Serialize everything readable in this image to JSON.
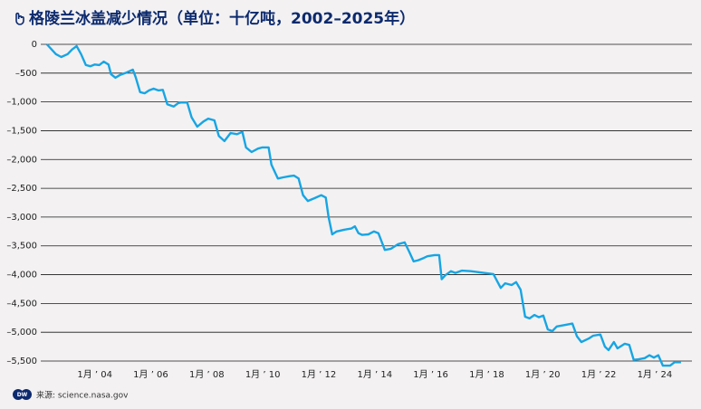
{
  "chart_data": {
    "type": "line",
    "title": "格陵兰冰盖减少情况（单位：十亿吨，2002–2025年）",
    "source": "来源: science.nasa.gov",
    "color": "#17a5e3",
    "grid": true,
    "xlim": [
      2002.07,
      2025.33
    ],
    "ylim": [
      0,
      -5500
    ],
    "xticks": [
      {
        "value": 2004,
        "label": "1月 ’ 04"
      },
      {
        "value": 2006,
        "label": "1月 ’ 06"
      },
      {
        "value": 2008,
        "label": "1月 ’ 08"
      },
      {
        "value": 2010,
        "label": "1月 ’ 10"
      },
      {
        "value": 2012,
        "label": "1月 ’ 12"
      },
      {
        "value": 2014,
        "label": "1月 ’ 14"
      },
      {
        "value": 2016,
        "label": "1月 ’ 16"
      },
      {
        "value": 2018,
        "label": "1月 ’ 18"
      },
      {
        "value": 2020,
        "label": "1月 ’ 20"
      },
      {
        "value": 2022,
        "label": "1月 ’ 22"
      },
      {
        "value": 2024,
        "label": "1月 ’ 24"
      }
    ],
    "yticks": [
      0,
      {
        "value": -500,
        "label": "–500"
      },
      {
        "value": -1000,
        "label": "–1,000"
      },
      {
        "value": -1500,
        "label": "–1,500"
      },
      {
        "value": -2000,
        "label": "–2,000"
      },
      {
        "value": -2500,
        "label": "–2,500"
      },
      {
        "value": -3000,
        "label": "–3,000"
      },
      {
        "value": -3500,
        "label": "–3,500"
      },
      {
        "value": -4000,
        "label": "–4,000"
      },
      {
        "value": -4500,
        "label": "–4,500"
      },
      {
        "value": -5000,
        "label": "–5,000"
      },
      {
        "value": -5500,
        "label": "–5,500"
      }
    ],
    "x": [
      2002.29,
      2002.61,
      2002.8,
      2003.03,
      2003.19,
      2003.35,
      2003.51,
      2003.68,
      2003.84,
      2004.0,
      2004.16,
      2004.32,
      2004.49,
      2004.58,
      2004.74,
      2004.91,
      2005.13,
      2005.36,
      2005.46,
      2005.62,
      2005.78,
      2005.94,
      2006.1,
      2006.27,
      2006.43,
      2006.59,
      2006.82,
      2006.98,
      2007.07,
      2007.3,
      2007.46,
      2007.66,
      2007.88,
      2008.05,
      2008.27,
      2008.43,
      2008.63,
      2008.85,
      2009.08,
      2009.27,
      2009.4,
      2009.6,
      2009.83,
      2009.99,
      2010.21,
      2010.31,
      2010.54,
      2010.73,
      2010.96,
      2011.12,
      2011.28,
      2011.44,
      2011.61,
      2011.86,
      2012.09,
      2012.25,
      2012.35,
      2012.48,
      2012.64,
      2012.9,
      2013.16,
      2013.29,
      2013.42,
      2013.55,
      2013.77,
      2013.97,
      2014.13,
      2014.36,
      2014.58,
      2014.84,
      2015.07,
      2015.23,
      2015.39,
      2015.55,
      2015.75,
      2015.88,
      2016.14,
      2016.3,
      2016.39,
      2016.52,
      2016.72,
      2016.88,
      2017.11,
      2017.43,
      2018.24,
      2018.5,
      2018.66,
      2018.89,
      2019.05,
      2019.21,
      2019.37,
      2019.53,
      2019.7,
      2019.86,
      2020.02,
      2020.18,
      2020.34,
      2020.5,
      2020.83,
      2021.06,
      2021.22,
      2021.38,
      2021.64,
      2021.8,
      2022.06,
      2022.22,
      2022.35,
      2022.54,
      2022.67,
      2022.93,
      2023.09,
      2023.25,
      2023.42,
      2023.64,
      2023.81,
      2023.97,
      2024.13,
      2024.29,
      2024.55,
      2024.71,
      2024.94
    ],
    "values": [
      0,
      -170,
      -220,
      -170,
      -90,
      -30,
      -170,
      -360,
      -380,
      -350,
      -360,
      -300,
      -350,
      -520,
      -580,
      -530,
      -490,
      -440,
      -570,
      -830,
      -850,
      -800,
      -770,
      -800,
      -790,
      -1040,
      -1080,
      -1020,
      -1010,
      -1010,
      -1270,
      -1430,
      -1340,
      -1290,
      -1320,
      -1590,
      -1680,
      -1540,
      -1560,
      -1520,
      -1790,
      -1870,
      -1810,
      -1790,
      -1790,
      -2090,
      -2330,
      -2310,
      -2290,
      -2280,
      -2330,
      -2620,
      -2720,
      -2670,
      -2620,
      -2660,
      -3000,
      -3300,
      -3250,
      -3220,
      -3200,
      -3160,
      -3280,
      -3310,
      -3300,
      -3250,
      -3280,
      -3570,
      -3550,
      -3470,
      -3440,
      -3600,
      -3770,
      -3750,
      -3710,
      -3680,
      -3660,
      -3660,
      -4080,
      -4010,
      -3940,
      -3970,
      -3930,
      -3940,
      -3990,
      -4230,
      -4150,
      -4180,
      -4130,
      -4260,
      -4730,
      -4760,
      -4700,
      -4740,
      -4710,
      -4950,
      -4980,
      -4900,
      -4870,
      -4850,
      -5070,
      -5170,
      -5110,
      -5060,
      -5040,
      -5250,
      -5310,
      -5170,
      -5280,
      -5200,
      -5220,
      -5480,
      -5470,
      -5450,
      -5400,
      -5440,
      -5400,
      -5580,
      -5580,
      -5520,
      -5520
    ]
  }
}
